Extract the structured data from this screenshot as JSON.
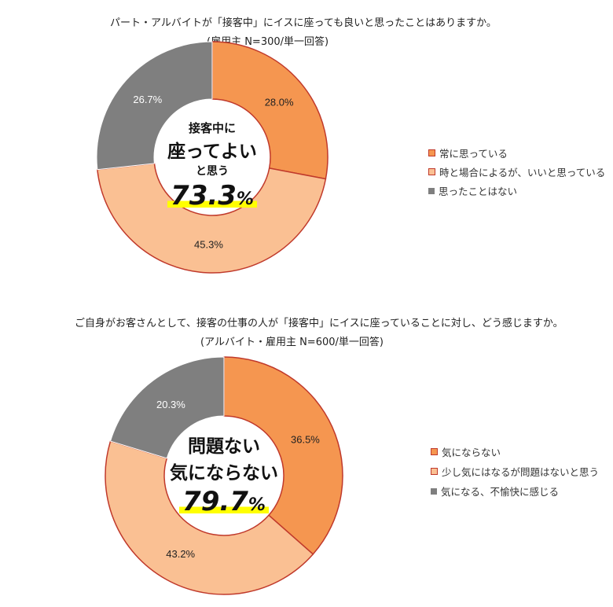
{
  "colors": {
    "orange": "#F59650",
    "light": "#FAC093",
    "grey": "#7F7F7F",
    "border": "#C0392B",
    "highlight": "#FFFF00"
  },
  "chart_data": [
    {
      "type": "pie",
      "donut": true,
      "title": "パート・アルバイトが「接客中」にイスに座っても良いと思ったことはありますか。",
      "subtitle": "(雇用主 N=300/単一回答)",
      "categories": [
        "常に思っている",
        "時と場合によるが、いいと思っている",
        "思ったことはない"
      ],
      "values": [
        28.0,
        45.3,
        26.7
      ],
      "labels": [
        "28.0%",
        "45.3%",
        "26.7%"
      ],
      "legend_position": "right",
      "center": {
        "line1": "接客中に",
        "line2": "座ってよい",
        "line3": "と思う",
        "value": "73.3",
        "unit": "%"
      }
    },
    {
      "type": "pie",
      "donut": true,
      "title": "ご自身がお客さんとして、接客の仕事の人が「接客中」にイスに座っていることに対し、どう感じますか。",
      "subtitle": "(アルバイト・雇用主 N=600/単一回答)",
      "categories": [
        "気にならない",
        "少し気にはなるが問題はないと思う",
        "気になる、不愉快に感じる"
      ],
      "values": [
        36.5,
        43.2,
        20.3
      ],
      "labels": [
        "36.5%",
        "43.2%",
        "20.3%"
      ],
      "legend_position": "right",
      "center": {
        "line1": "問題ない",
        "line2": "気にならない",
        "value": "79.7",
        "unit": "%"
      }
    }
  ]
}
